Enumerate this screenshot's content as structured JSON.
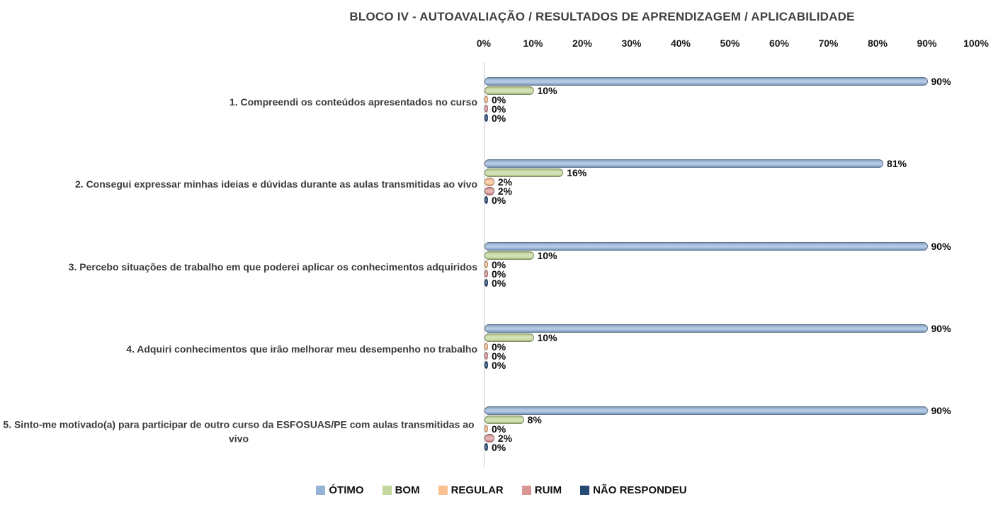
{
  "title": "BLOCO IV - AUTOAVALIAÇÃO / RESULTADOS DE APRENDIZAGEM / APLICABILIDADE",
  "chart_data": {
    "type": "bar",
    "orientation": "horizontal",
    "title": "BLOCO IV - AUTOAVALIAÇÃO / RESULTADOS DE APRENDIZAGEM / APLICABILIDADE",
    "x_ticks": [
      "0%",
      "10%",
      "20%",
      "30%",
      "40%",
      "50%",
      "60%",
      "70%",
      "80%",
      "90%",
      "100%"
    ],
    "xlim": [
      0,
      100
    ],
    "grid": false,
    "legend_position": "bottom",
    "categories": [
      "1. Compreendi os conteúdos apresentados no curso",
      "2. Consegui expressar minhas ideias e dúvidas durante as aulas transmitidas ao vivo",
      "3. Percebo situações de trabalho em que poderei aplicar os conhecimentos adquiridos",
      "4. Adquiri conhecimentos que irão melhorar meu desempenho no trabalho",
      "5. Sinto-me motivado(a) para participar de outro curso da ESFOSUAS/PE com aulas transmitidas ao vivo"
    ],
    "series": [
      {
        "name": "ÓTIMO",
        "color": "#95B3D7",
        "values": [
          90,
          81,
          90,
          90,
          90
        ],
        "labels": [
          "90%",
          "81%",
          "90%",
          "90%",
          "90%"
        ]
      },
      {
        "name": "BOM",
        "color": "#C3D69B",
        "values": [
          10,
          16,
          10,
          10,
          8
        ],
        "labels": [
          "10%",
          "16%",
          "10%",
          "10%",
          "8%"
        ]
      },
      {
        "name": "REGULAR",
        "color": "#FAC090",
        "values": [
          0,
          2,
          0,
          0,
          0
        ],
        "labels": [
          "0%",
          "2%",
          "0%",
          "0%",
          "0%"
        ]
      },
      {
        "name": "RUIM",
        "color": "#D99694",
        "values": [
          0,
          2,
          0,
          0,
          2
        ],
        "labels": [
          "0%",
          "2%",
          "0%",
          "0%",
          "2%"
        ]
      },
      {
        "name": "NÃO RESPONDEU",
        "color": "#254A73",
        "values": [
          0,
          0,
          0,
          0,
          0
        ],
        "labels": [
          "0%",
          "0%",
          "0%",
          "0%",
          "0%"
        ]
      }
    ]
  }
}
